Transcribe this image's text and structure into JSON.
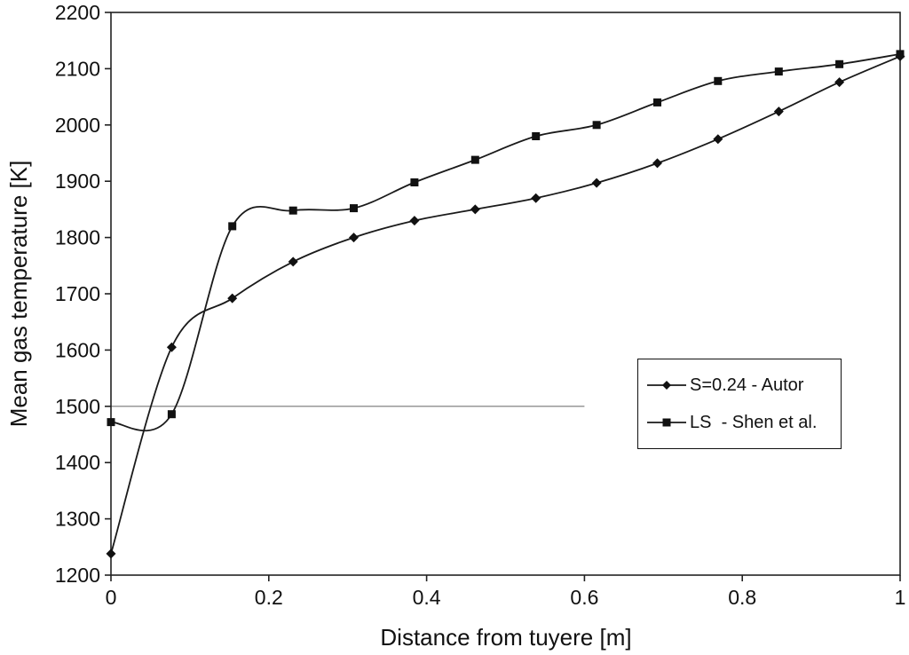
{
  "chart_data": {
    "type": "line",
    "title": "",
    "xlabel": "Distance from tuyere [m]",
    "ylabel": "Mean gas temperature [K]",
    "xlim": [
      0,
      1
    ],
    "ylim": [
      1200,
      2200
    ],
    "x_ticks": [
      0,
      0.2,
      0.4,
      0.6,
      0.8,
      1
    ],
    "x_tick_labels": [
      "0",
      "0.2",
      "0.4",
      "0.6",
      "0.8",
      "1"
    ],
    "y_ticks": [
      1200,
      1300,
      1400,
      1500,
      1600,
      1700,
      1800,
      1900,
      2000,
      2100,
      2200
    ],
    "grid": "off",
    "partial_gridline": {
      "y": 1500,
      "x_start": 0,
      "x_end": 0.6
    },
    "legend_position": "middle-right",
    "line_color": "#1a1a1a",
    "background_color": "#ffffff",
    "series": [
      {
        "name": "S=0.24 - Autor",
        "marker": "diamond",
        "x": [
          0,
          0.0769,
          0.1538,
          0.2308,
          0.3077,
          0.3846,
          0.4615,
          0.5385,
          0.6154,
          0.6923,
          0.7692,
          0.8462,
          0.9231,
          1
        ],
        "y": [
          1238,
          1605,
          1692,
          1757,
          1800,
          1830,
          1850,
          1870,
          1897,
          1932,
          1975,
          2024,
          2076,
          2122
        ]
      },
      {
        "name": "LS  - Shen et al.",
        "marker": "square",
        "x": [
          0,
          0.0769,
          0.1538,
          0.2308,
          0.3077,
          0.3846,
          0.4615,
          0.5385,
          0.6154,
          0.6923,
          0.7692,
          0.8462,
          0.9231,
          1
        ],
        "y": [
          1472,
          1486,
          1820,
          1848,
          1852,
          1898,
          1938,
          1980,
          2000,
          2040,
          2078,
          2095,
          2108,
          2126
        ]
      }
    ]
  }
}
